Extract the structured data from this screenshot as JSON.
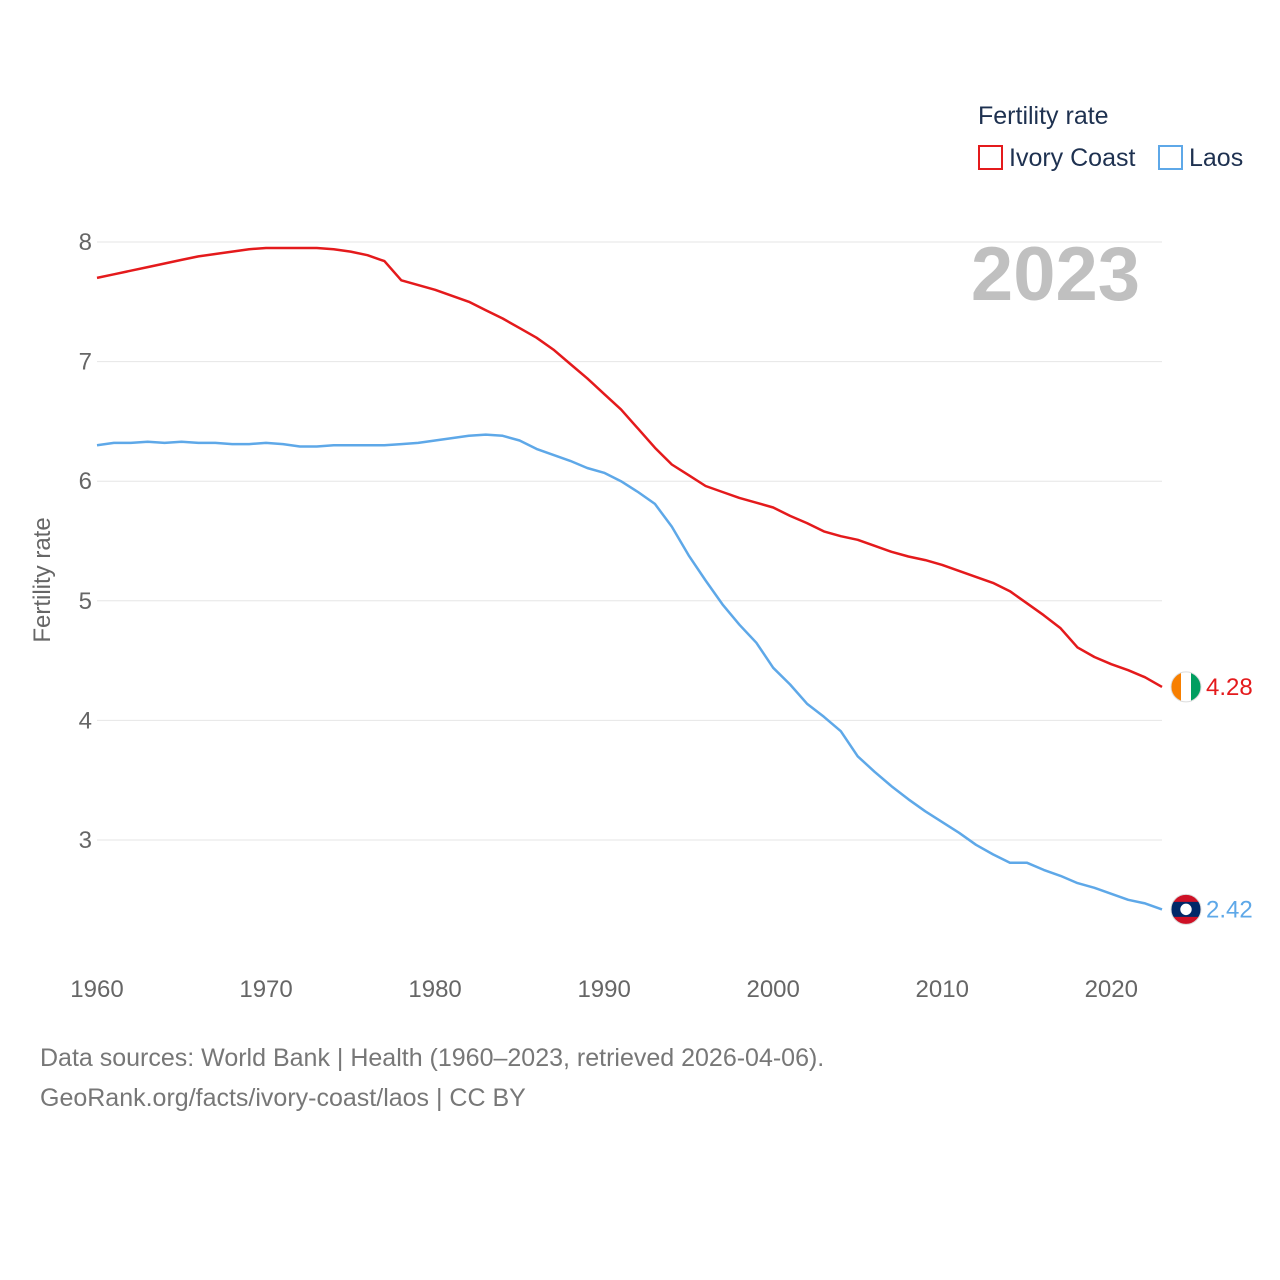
{
  "chart_data": {
    "type": "line",
    "title": "",
    "ylabel": "Fertility rate",
    "xlabel": "",
    "year_label": "2023",
    "xlim": [
      1960,
      2023
    ],
    "ylim": [
      2.2,
      8.2
    ],
    "xticks": [
      1960,
      1970,
      1980,
      1990,
      2000,
      2010,
      2020
    ],
    "yticks": [
      3,
      4,
      5,
      6,
      7,
      8
    ],
    "grid": true,
    "legend": {
      "title": "Fertility rate",
      "position": "top-right",
      "items": [
        "Ivory Coast",
        "Laos"
      ]
    },
    "series": [
      {
        "name": "Ivory Coast",
        "color": "#e41a1c",
        "end_label": "4.28",
        "x": [
          1960,
          1961,
          1962,
          1963,
          1964,
          1965,
          1966,
          1967,
          1968,
          1969,
          1970,
          1971,
          1972,
          1973,
          1974,
          1975,
          1976,
          1977,
          1978,
          1979,
          1980,
          1981,
          1982,
          1983,
          1984,
          1985,
          1986,
          1987,
          1988,
          1989,
          1990,
          1991,
          1992,
          1993,
          1994,
          1995,
          1996,
          1997,
          1998,
          1999,
          2000,
          2001,
          2002,
          2003,
          2004,
          2005,
          2006,
          2007,
          2008,
          2009,
          2010,
          2011,
          2012,
          2013,
          2014,
          2015,
          2016,
          2017,
          2018,
          2019,
          2020,
          2021,
          2022,
          2023
        ],
        "values": [
          7.7,
          7.73,
          7.76,
          7.79,
          7.82,
          7.85,
          7.88,
          7.9,
          7.92,
          7.94,
          7.95,
          7.95,
          7.95,
          7.95,
          7.94,
          7.92,
          7.89,
          7.84,
          7.68,
          7.64,
          7.6,
          7.55,
          7.5,
          7.43,
          7.36,
          7.28,
          7.2,
          7.1,
          6.98,
          6.86,
          6.73,
          6.6,
          6.44,
          6.28,
          6.14,
          6.05,
          5.96,
          5.91,
          5.86,
          5.82,
          5.78,
          5.71,
          5.65,
          5.58,
          5.54,
          5.51,
          5.46,
          5.41,
          5.37,
          5.34,
          5.3,
          5.25,
          5.2,
          5.15,
          5.08,
          4.98,
          4.88,
          4.77,
          4.61,
          4.53,
          4.47,
          4.42,
          4.36,
          4.28
        ]
      },
      {
        "name": "Laos",
        "color": "#5ea8e8",
        "end_label": "2.42",
        "x": [
          1960,
          1961,
          1962,
          1963,
          1964,
          1965,
          1966,
          1967,
          1968,
          1969,
          1970,
          1971,
          1972,
          1973,
          1974,
          1975,
          1976,
          1977,
          1978,
          1979,
          1980,
          1981,
          1982,
          1983,
          1984,
          1985,
          1986,
          1987,
          1988,
          1989,
          1990,
          1991,
          1992,
          1993,
          1994,
          1995,
          1996,
          1997,
          1998,
          1999,
          2000,
          2001,
          2002,
          2003,
          2004,
          2005,
          2006,
          2007,
          2008,
          2009,
          2010,
          2011,
          2012,
          2013,
          2014,
          2015,
          2016,
          2017,
          2018,
          2019,
          2020,
          2021,
          2022,
          2023
        ],
        "values": [
          6.3,
          6.32,
          6.32,
          6.33,
          6.32,
          6.33,
          6.32,
          6.32,
          6.31,
          6.31,
          6.32,
          6.31,
          6.29,
          6.29,
          6.3,
          6.3,
          6.3,
          6.3,
          6.31,
          6.32,
          6.34,
          6.36,
          6.38,
          6.39,
          6.38,
          6.34,
          6.27,
          6.22,
          6.17,
          6.11,
          6.07,
          6.0,
          5.91,
          5.81,
          5.62,
          5.38,
          5.17,
          4.97,
          4.8,
          4.65,
          4.44,
          4.3,
          4.14,
          4.03,
          3.91,
          3.7,
          3.57,
          3.45,
          3.34,
          3.24,
          3.15,
          3.06,
          2.96,
          2.88,
          2.81,
          2.81,
          2.75,
          2.7,
          2.64,
          2.6,
          2.55,
          2.5,
          2.47,
          2.42
        ]
      }
    ]
  },
  "flags": {
    "ivory_coast": {
      "colors": [
        "#f77f00",
        "#ffffff",
        "#009e60"
      ],
      "icon": "ivory-coast-flag-icon"
    },
    "laos": {
      "colors": [
        "#ce1126",
        "#002868",
        "#ffffff"
      ],
      "icon": "laos-flag-icon"
    }
  },
  "footer": {
    "sources": "Data sources: World Bank | Health (1960–2023, retrieved 2026-04-06).",
    "attribution": "GeoRank.org/facts/ivory-coast/laos | CC BY"
  }
}
